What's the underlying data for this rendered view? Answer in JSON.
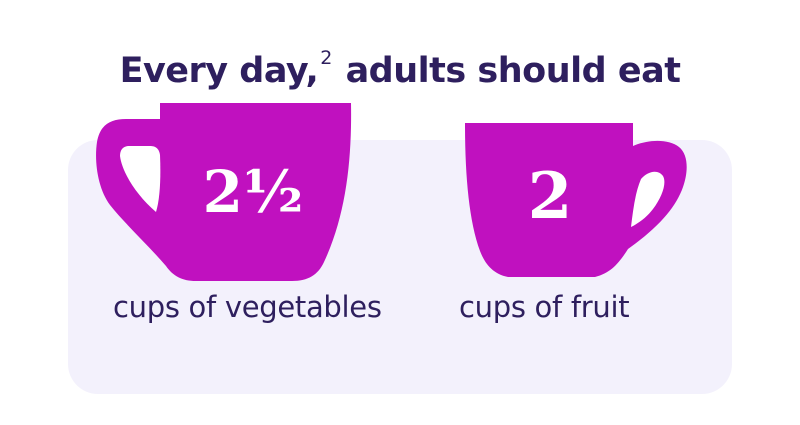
{
  "header": {
    "title_before": "Every day,",
    "footnote": "2",
    "title_after": "adults should eat"
  },
  "cups": [
    {
      "amount": "2½",
      "caption": "cups of vegetables"
    },
    {
      "amount": "2",
      "caption": "cups of fruit"
    }
  ],
  "colors": {
    "cup": "#c011bf",
    "text": "#2e1f5e",
    "panel": "#f3f1fc"
  }
}
